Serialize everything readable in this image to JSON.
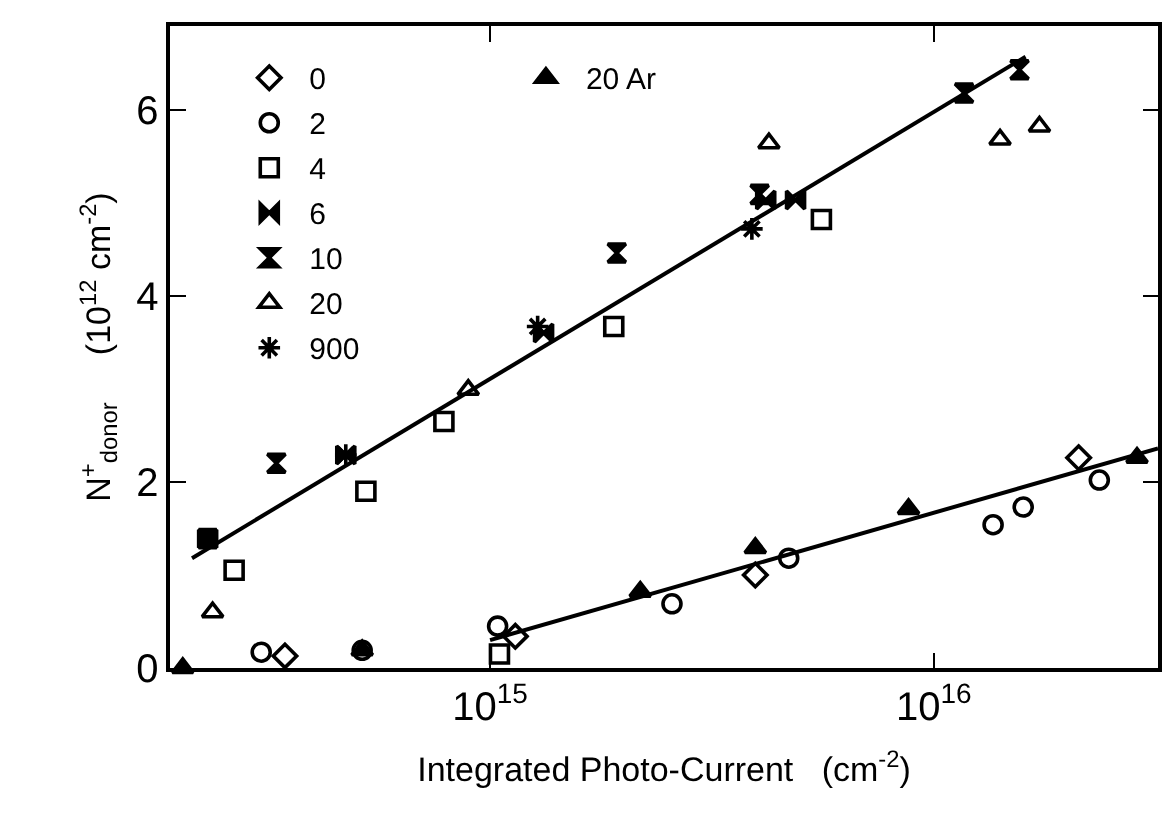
{
  "chart_data": {
    "type": "scatter",
    "xlabel": "Integrated Photo-Current   (cm$^{-2}$)",
    "ylabel": "N$^{+}$$_{donor}$     (10$^{12}$ cm$^{-2}$)",
    "log": "x",
    "xlim": [
      190000000000000.0,
      3.2e+16
    ],
    "xticks": [
      {
        "value": 1000000000000000.0,
        "label": "10$^{15}$"
      },
      {
        "value": 1e+16,
        "label": "10$^{16}$"
      }
    ],
    "ylim": [
      0,
      6.9
    ],
    "yticks": [
      0,
      2,
      4,
      6
    ],
    "legend": "top left",
    "series": [
      {
        "name": "0",
        "color": "#000000",
        "marker": "diamond",
        "x": [
          345000000000000.0,
          1140000000000000.0,
          3960000000000000.0,
          2.12e+16
        ],
        "values": [
          0.13,
          0.34,
          1.0,
          2.26
        ]
      },
      {
        "name": "2",
        "color": "#000000",
        "marker": "circle",
        "x": [
          305000000000000.0,
          515000000000000.0,
          1040000000000000.0,
          2570000000000000.0,
          4710000000000000.0,
          1.36e+16,
          1.59e+16,
          2.36e+16
        ],
        "values": [
          0.17,
          0.19,
          0.45,
          0.69,
          1.18,
          1.54,
          1.73,
          2.02
        ]
      },
      {
        "name": "4",
        "color": "#000000",
        "marker": "square",
        "x": [
          265000000000000.0,
          525000000000000.0,
          787000000000000.0,
          1050000000000000.0,
          1900000000000000.0,
          5580000000000000.0
        ],
        "values": [
          1.05,
          1.9,
          2.65,
          0.15,
          3.67,
          4.82
        ]
      },
      {
        "name": "6",
        "color": "#000000",
        "x": [
          231000000000000.0,
          473000000000000.0,
          1320000000000000.0,
          4180000000000000.0,
          4880000000000000.0
        ],
        "values": [
          1.39,
          2.29,
          3.6,
          5.03,
          5.03
        ]
      },
      {
        "name": "10",
        "color": "#000000",
        "x": [
          231000000000000.0,
          330000000000000.0,
          1930000000000000.0,
          4050000000000000.0,
          1.17e+16,
          1.56e+16
        ],
        "values": [
          1.39,
          2.2,
          4.46,
          5.09,
          6.18,
          6.43
        ]
      },
      {
        "name": "20",
        "color": "#000000",
        "marker": "triangle",
        "x": [
          237000000000000.0,
          893000000000000.0,
          4250000000000000.0,
          1.41e+16,
          1.73e+16
        ],
        "values": [
          0.6,
          2.99,
          5.64,
          5.68,
          5.82
        ]
      },
      {
        "name": "900",
        "color": "#000000",
        "marker": "cross",
        "x": [
          473000000000000.0,
          1280000000000000.0,
          3890000000000000.0
        ],
        "values": [
          2.29,
          3.67,
          4.72
        ]
      },
      {
        "name": "20 Ar",
        "color": "#000000",
        "x": [
          203000000000000.0,
          515000000000000.0,
          2180000000000000.0,
          3960000000000000.0,
          8770000000000000.0,
          2.87e+16
        ],
        "values": [
          0.0,
          0.19,
          0.82,
          1.29,
          1.71,
          2.26
        ]
      },
      {
        "type": "line",
        "color": "#000000",
        "marker": "none",
        "x": [
          213000000000000.0,
          1.61e+16
        ],
        "values": [
          1.18,
          6.57
        ]
      },
      {
        "type": "line",
        "color": "#000000",
        "marker": "none",
        "x": [
          1000000000000000.0,
          3.2e+16
        ],
        "values": [
          0.3,
          2.36
        ]
      }
    ]
  }
}
